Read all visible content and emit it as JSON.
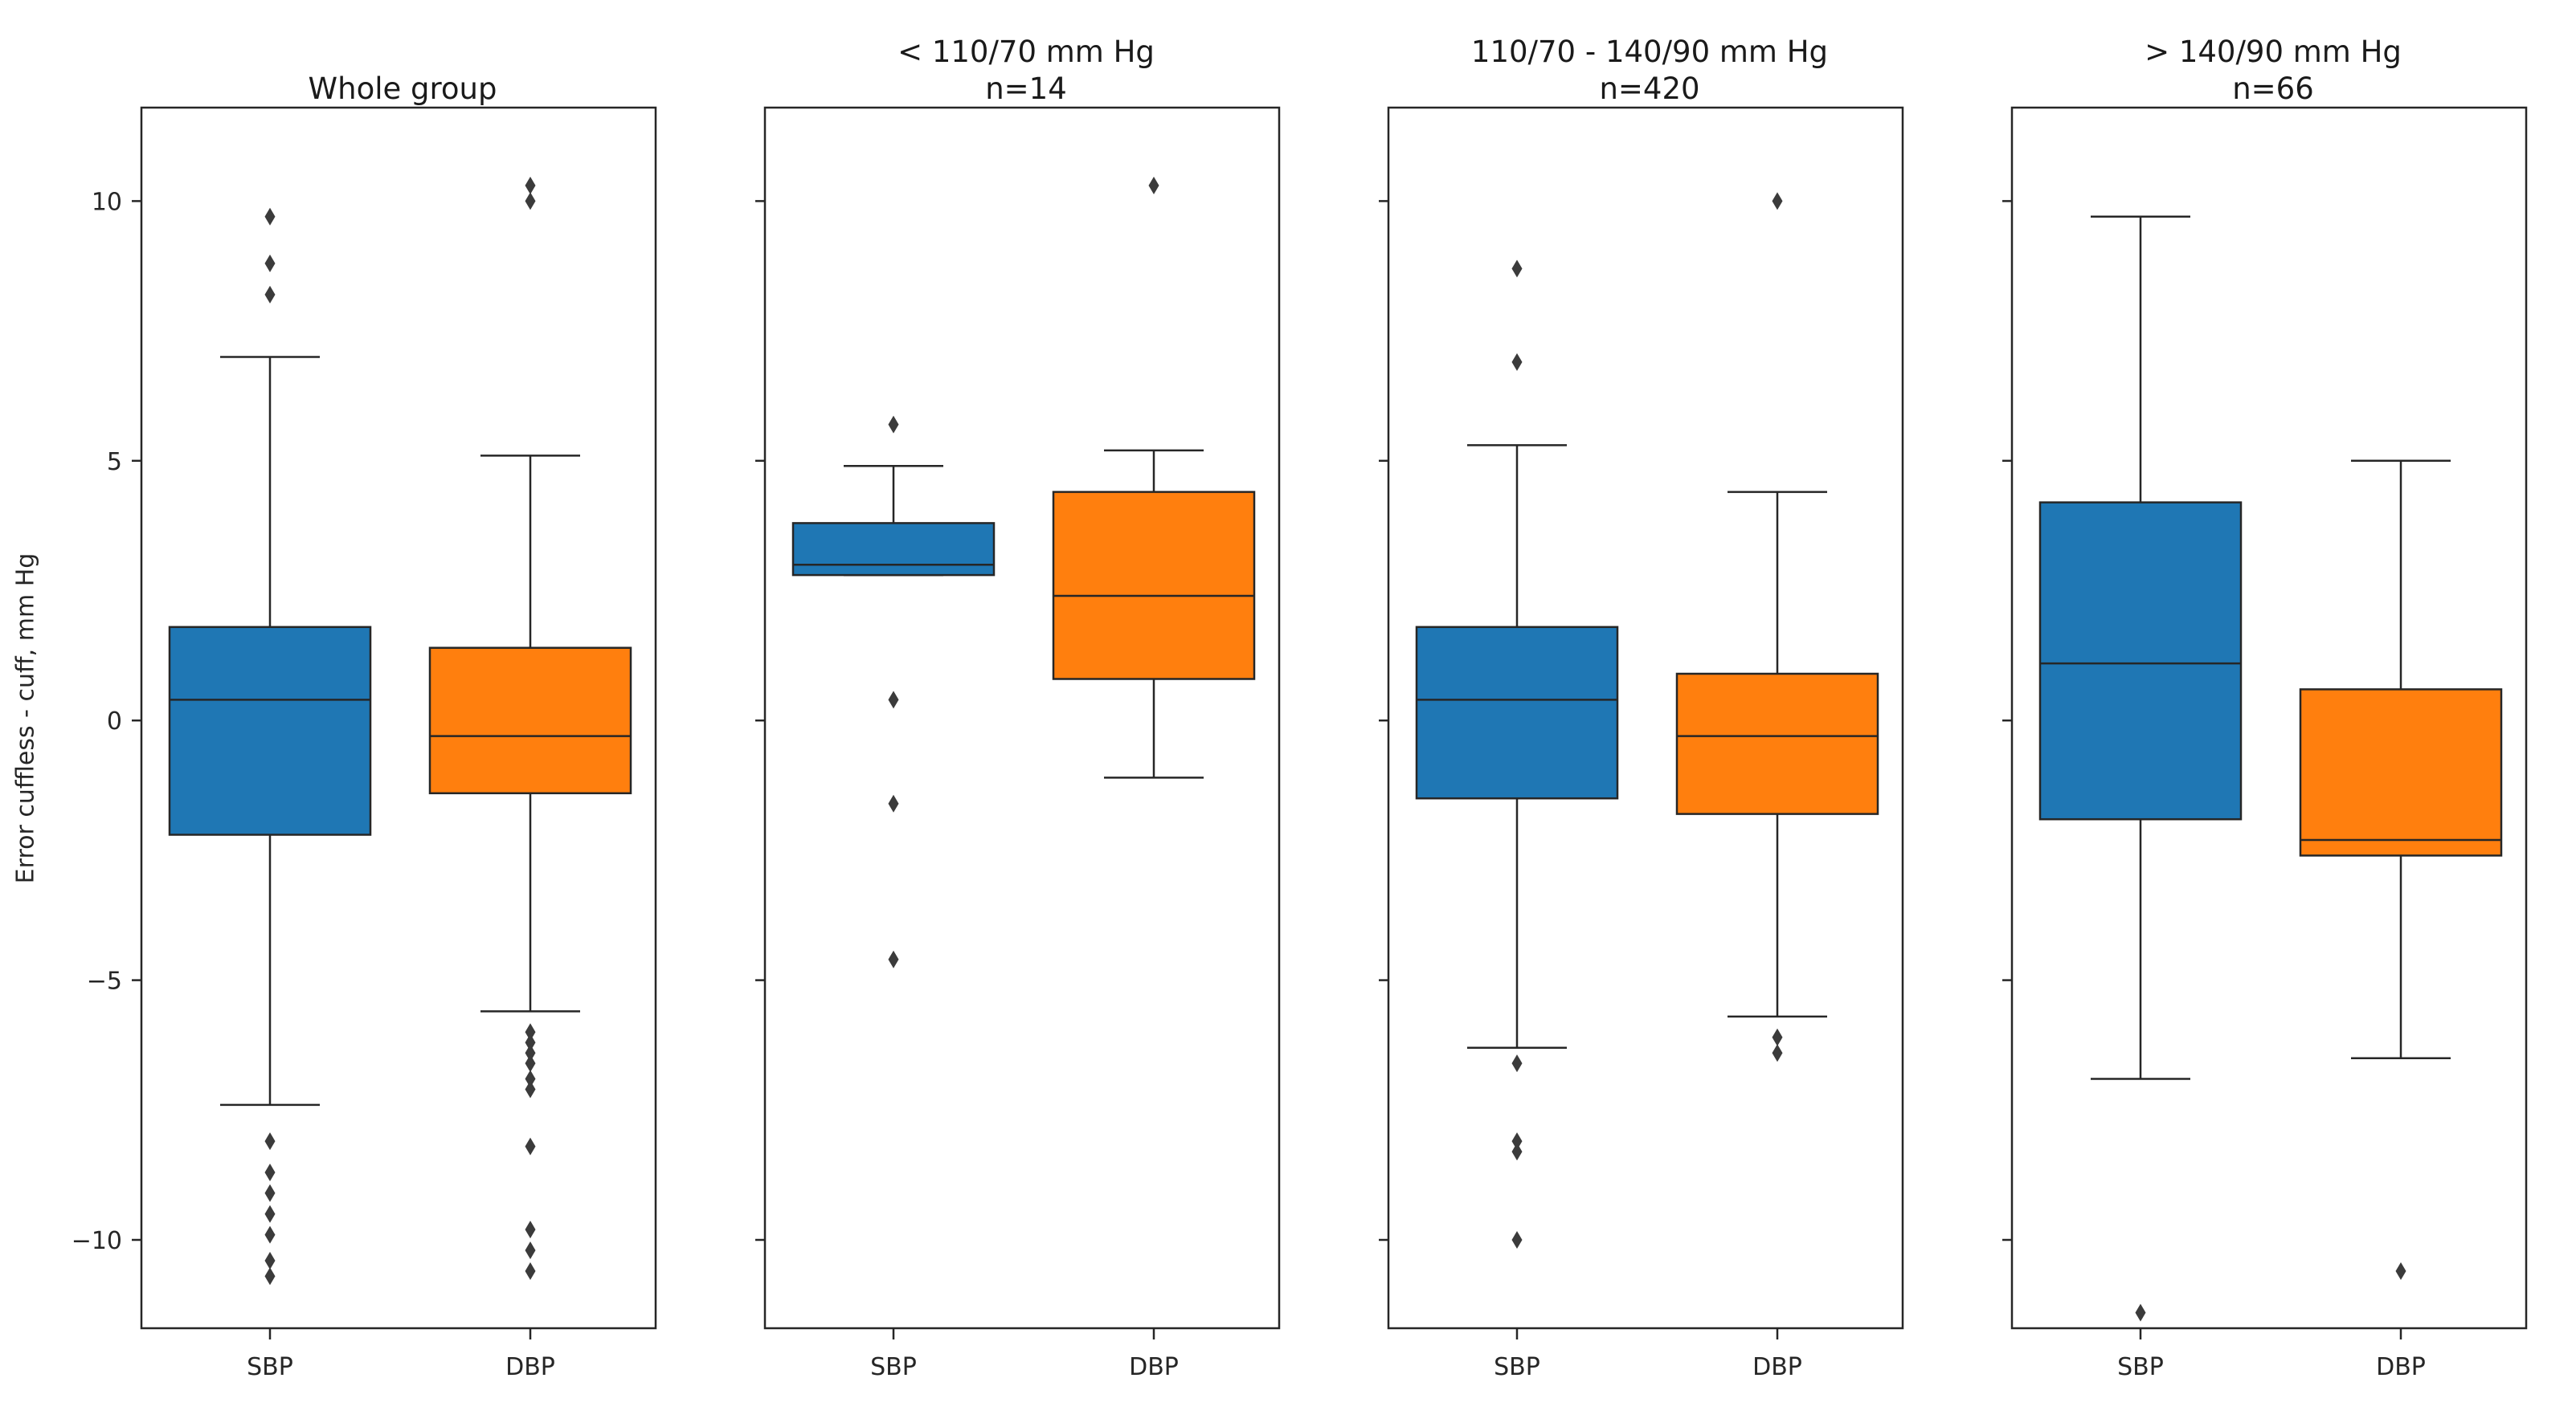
{
  "chart_data": {
    "type": "boxplot",
    "ylabel": "Error cuffless - cuff, mm Hg",
    "ylim": [
      -11.7,
      11.8
    ],
    "yticks": [
      -10,
      -5,
      0,
      5,
      10
    ],
    "categories": [
      "SBP",
      "DBP"
    ],
    "series_colors": {
      "SBP": "#1f77b4",
      "DBP": "#ff7f0e"
    },
    "legend": "none",
    "grid": false,
    "panels": [
      {
        "title": "Whole group",
        "subtitle": "",
        "show_ytick_labels": true,
        "boxes": [
          {
            "label": "SBP",
            "color": "#1f77b4",
            "whisker_low": -7.4,
            "q1": -2.2,
            "median": 0.4,
            "q3": 1.8,
            "whisker_high": 7.0,
            "outliers": [
              9.7,
              8.8,
              8.2,
              -8.1,
              -8.7,
              -9.1,
              -9.5,
              -9.9,
              -10.4,
              -10.7
            ]
          },
          {
            "label": "DBP",
            "color": "#ff7f0e",
            "whisker_low": -5.6,
            "q1": -1.4,
            "median": -0.3,
            "q3": 1.4,
            "whisker_high": 5.1,
            "outliers": [
              10.3,
              10.0,
              -6.0,
              -6.2,
              -6.4,
              -6.6,
              -6.9,
              -7.1,
              -8.2,
              -9.8,
              -10.2,
              -10.6
            ]
          }
        ]
      },
      {
        "title": "< 110/70 mm Hg",
        "subtitle": "n=14",
        "show_ytick_labels": false,
        "boxes": [
          {
            "label": "SBP",
            "color": "#1f77b4",
            "whisker_low": 2.8,
            "q1": 2.8,
            "median": 3.0,
            "q3": 3.8,
            "whisker_high": 4.9,
            "outliers": [
              5.7,
              0.4,
              -1.6,
              -4.6
            ]
          },
          {
            "label": "DBP",
            "color": "#ff7f0e",
            "whisker_low": -1.1,
            "q1": 0.8,
            "median": 2.4,
            "q3": 4.4,
            "whisker_high": 5.2,
            "outliers": [
              10.3
            ]
          }
        ]
      },
      {
        "title": "110/70 - 140/90 mm Hg",
        "subtitle": "n=420",
        "show_ytick_labels": false,
        "boxes": [
          {
            "label": "SBP",
            "color": "#1f77b4",
            "whisker_low": -6.3,
            "q1": -1.5,
            "median": 0.4,
            "q3": 1.8,
            "whisker_high": 5.3,
            "outliers": [
              8.7,
              6.9,
              -6.6,
              -8.1,
              -8.3,
              -10.0
            ]
          },
          {
            "label": "DBP",
            "color": "#ff7f0e",
            "whisker_low": -5.7,
            "q1": -1.8,
            "median": -0.3,
            "q3": 0.9,
            "whisker_high": 4.4,
            "outliers": [
              10.0,
              -6.1,
              -6.4
            ]
          }
        ]
      },
      {
        "title": "> 140/90 mm Hg",
        "subtitle": "n=66",
        "show_ytick_labels": false,
        "boxes": [
          {
            "label": "SBP",
            "color": "#1f77b4",
            "whisker_low": -6.9,
            "q1": -1.9,
            "median": 1.1,
            "q3": 4.2,
            "whisker_high": 9.7,
            "outliers": [
              -11.4
            ]
          },
          {
            "label": "DBP",
            "color": "#ff7f0e",
            "whisker_low": -6.5,
            "q1": -2.6,
            "median": -2.3,
            "q3": 0.6,
            "whisker_high": 5.0,
            "outliers": [
              -10.6
            ]
          }
        ]
      }
    ]
  }
}
